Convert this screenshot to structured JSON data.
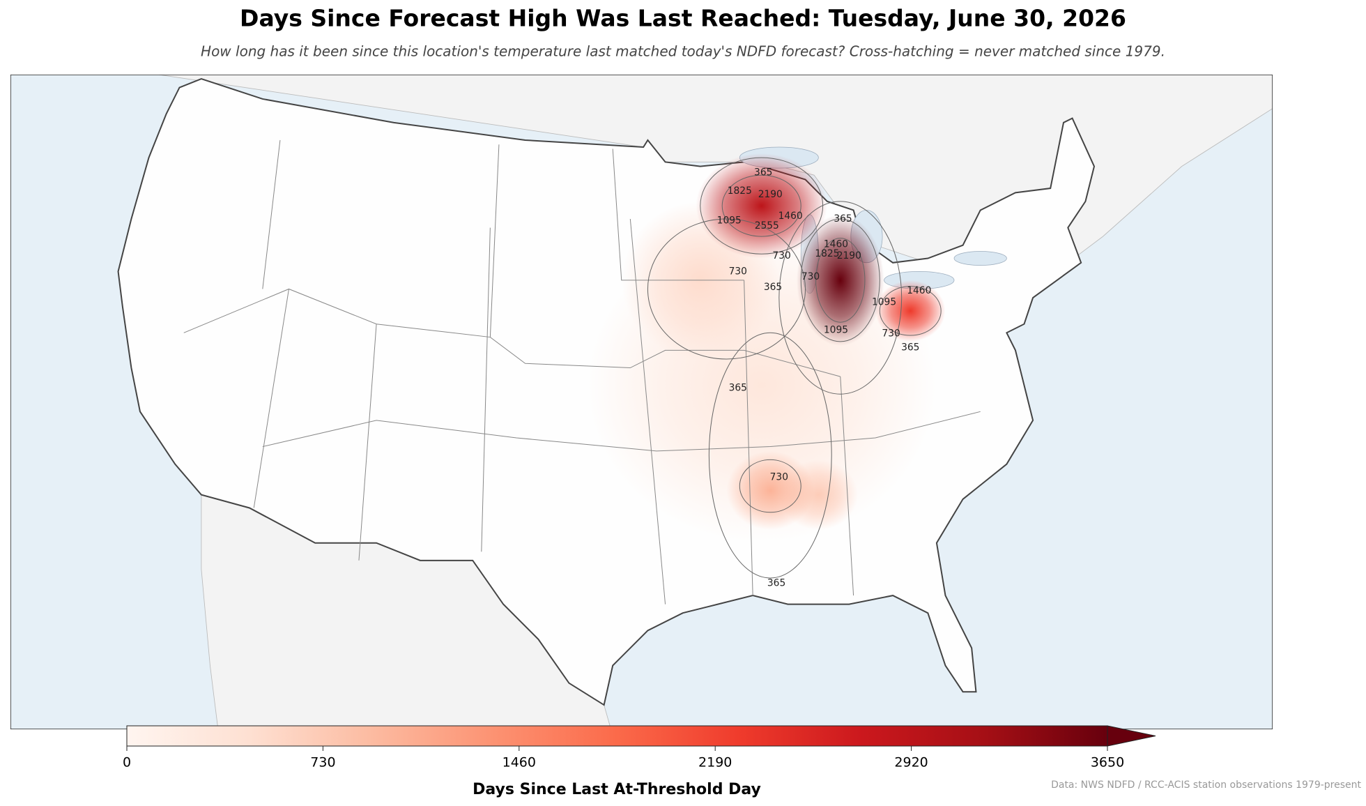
{
  "title": "Days Since Forecast High Was Last Reached: Tuesday, June 30, 2026",
  "subtitle": "How long has it been since this location's temperature last matched today's NDFD forecast? Cross-hatching = never matched since 1979.",
  "hotspot_peaks": [
    2900,
    3650,
    2300,
    1000,
    700,
    500,
    300
  ],
  "contour_labels": [
    365,
    1825,
    2190,
    1095,
    2555,
    1460,
    730,
    730,
    365,
    365,
    1460,
    1825,
    2190,
    730,
    1095,
    1095,
    730,
    365,
    1460,
    365,
    730,
    365
  ],
  "colorbar": {
    "label": "Days Since Last At-Threshold Day",
    "lim": [
      0,
      3650
    ],
    "ticks": [
      0,
      730,
      1460,
      2190,
      2920,
      3650
    ],
    "colormap": [
      "#fff5f0",
      "#fee0d2",
      "#fcbba1",
      "#fc9272",
      "#fb6a4a",
      "#ef3b2c",
      "#cb181d",
      "#a50f15",
      "#67000d"
    ],
    "extend": "max"
  },
  "source": "Data: NWS NDFD / RCC-ACIS station observations 1979-present"
}
